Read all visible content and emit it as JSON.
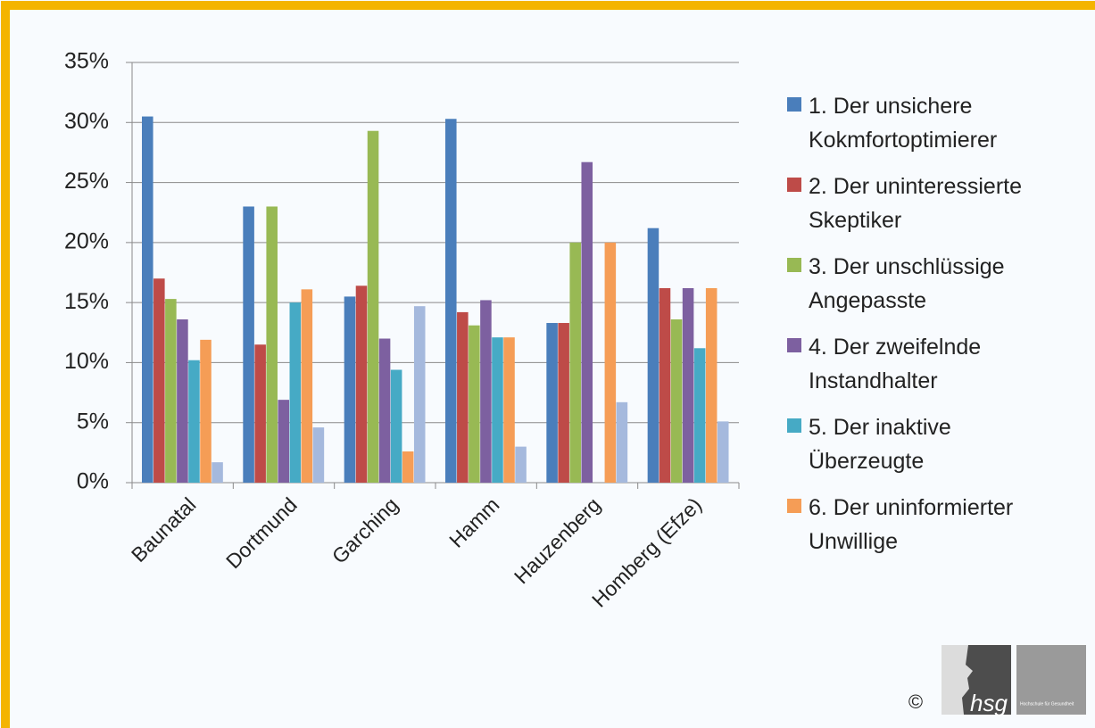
{
  "chart_data": {
    "type": "bar",
    "categories": [
      "Baunatal",
      "Dortmund",
      "Garching",
      "Hamm",
      "Hauzenberg",
      "Homberg (Efze)"
    ],
    "series": [
      {
        "name": "1. Der unsichere\nKokmfortoptimierer",
        "color": "#4a7ebb",
        "values": [
          30.5,
          23,
          15.5,
          30.3,
          13.3,
          21.2
        ]
      },
      {
        "name": "2. Der uninteressierte\nSkeptiker",
        "color": "#be4b48",
        "values": [
          17,
          11.5,
          16.4,
          14.2,
          13.3,
          16.2
        ]
      },
      {
        "name": "3. Der unschlüssige\nAngepasste",
        "color": "#98b954",
        "values": [
          15.3,
          23,
          29.3,
          13.1,
          20,
          13.6
        ]
      },
      {
        "name": "4. Der zweifelnde\nInstandhalter",
        "color": "#7d60a0",
        "values": [
          13.6,
          6.9,
          12,
          15.2,
          26.7,
          16.2
        ]
      },
      {
        "name": "5. Der inaktive\nÜberzeugte",
        "color": "#46aac5",
        "values": [
          10.2,
          15,
          9.4,
          12.1,
          0,
          11.2
        ]
      },
      {
        "name": "6. Der  uninformierter\nUnwillige",
        "color": "#f59d56",
        "values": [
          11.9,
          16.1,
          2.6,
          12.1,
          20,
          16.2
        ]
      },
      {
        "color": "#a5b9dd",
        "values": [
          1.7,
          4.6,
          14.7,
          3.0,
          6.7,
          5.1
        ]
      }
    ],
    "ylim": [
      0,
      35
    ],
    "yticks": [
      {
        "value": 0,
        "label": "0%"
      },
      {
        "value": 5,
        "label": "5%"
      },
      {
        "value": 10,
        "label": "10%"
      },
      {
        "value": 15,
        "label": "15%"
      },
      {
        "value": 20,
        "label": "20%"
      },
      {
        "value": 25,
        "label": "25%"
      },
      {
        "value": 30,
        "label": "30%"
      },
      {
        "value": 35,
        "label": "35%"
      }
    ],
    "grid": true
  },
  "logo": {
    "copyright": "©",
    "mark": "hsg",
    "text": "Hochschule für Gesundheit"
  }
}
